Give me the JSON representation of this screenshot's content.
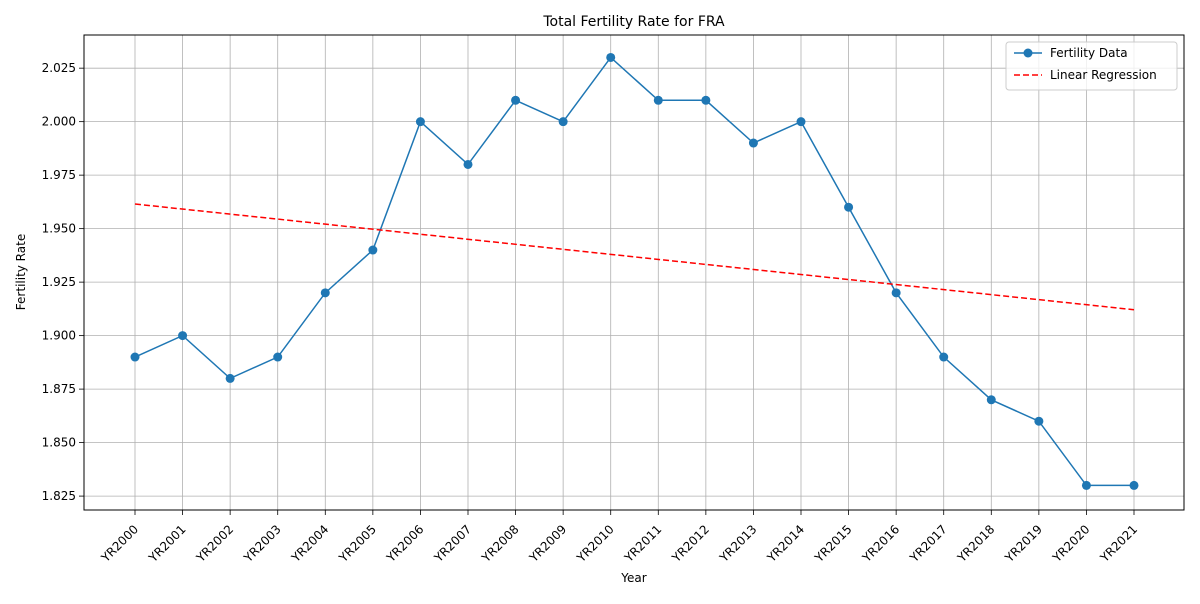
{
  "chart_data": {
    "type": "line",
    "title": "Total Fertility Rate for FRA",
    "xlabel": "Year",
    "ylabel": "Fertility Rate",
    "categories": [
      "YR2000",
      "YR2001",
      "YR2002",
      "YR2003",
      "YR2004",
      "YR2005",
      "YR2006",
      "YR2007",
      "YR2008",
      "YR2009",
      "YR2010",
      "YR2011",
      "YR2012",
      "YR2013",
      "YR2014",
      "YR2015",
      "YR2016",
      "YR2017",
      "YR2018",
      "YR2019",
      "YR2020",
      "YR2021"
    ],
    "series": [
      {
        "name": "Fertility Data",
        "style": "solid line with circle markers",
        "color": "#1f77b4",
        "values": [
          1.89,
          1.9,
          1.88,
          1.89,
          1.92,
          1.94,
          2.0,
          1.98,
          2.01,
          2.0,
          2.03,
          2.01,
          2.01,
          1.99,
          2.0,
          1.96,
          1.92,
          1.89,
          1.87,
          1.86,
          1.83,
          1.83
        ]
      },
      {
        "name": "Linear Regression",
        "style": "dashed line",
        "color": "#ff0000",
        "endpoints": [
          1.9615,
          1.9121
        ]
      }
    ],
    "ylim": [
      1.8185,
      2.0405
    ],
    "yticks": [
      "1.825",
      "1.850",
      "1.875",
      "1.900",
      "1.925",
      "1.950",
      "1.975",
      "2.000",
      "2.025"
    ],
    "ytick_values": [
      1.825,
      1.85,
      1.875,
      1.9,
      1.925,
      1.95,
      1.975,
      2.0,
      2.025
    ],
    "grid": true,
    "legend_position": "top-right"
  }
}
